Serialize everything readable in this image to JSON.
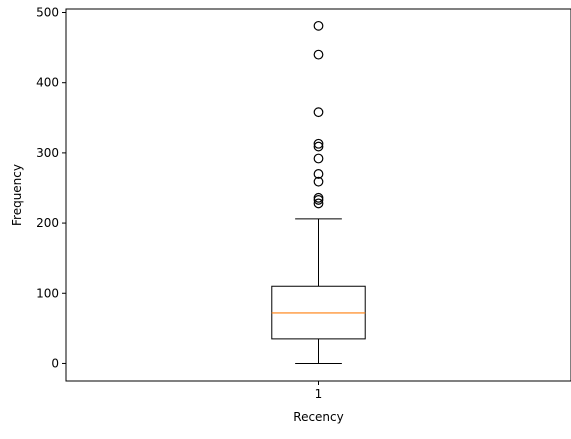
{
  "chart_data": {
    "type": "boxplot",
    "title": "",
    "xlabel": "Recency",
    "ylabel": "Frequency",
    "categories": [
      "1"
    ],
    "ylim": [
      -25,
      505
    ],
    "yticks": [
      0,
      100,
      200,
      300,
      400,
      500
    ],
    "grid": false,
    "legend": "none",
    "boxes": [
      {
        "category": "1",
        "whisker_low": 0,
        "q1": 35,
        "median": 72,
        "q3": 110,
        "whisker_high": 206,
        "outliers": [
          228,
          233,
          236,
          259,
          270,
          292,
          309,
          313,
          358,
          440,
          481
        ]
      }
    ],
    "colors": {
      "box": "#000000",
      "median": "#ff7f0e",
      "outlier_edge": "#000000",
      "axes": "#000000",
      "background": "#ffffff"
    }
  }
}
